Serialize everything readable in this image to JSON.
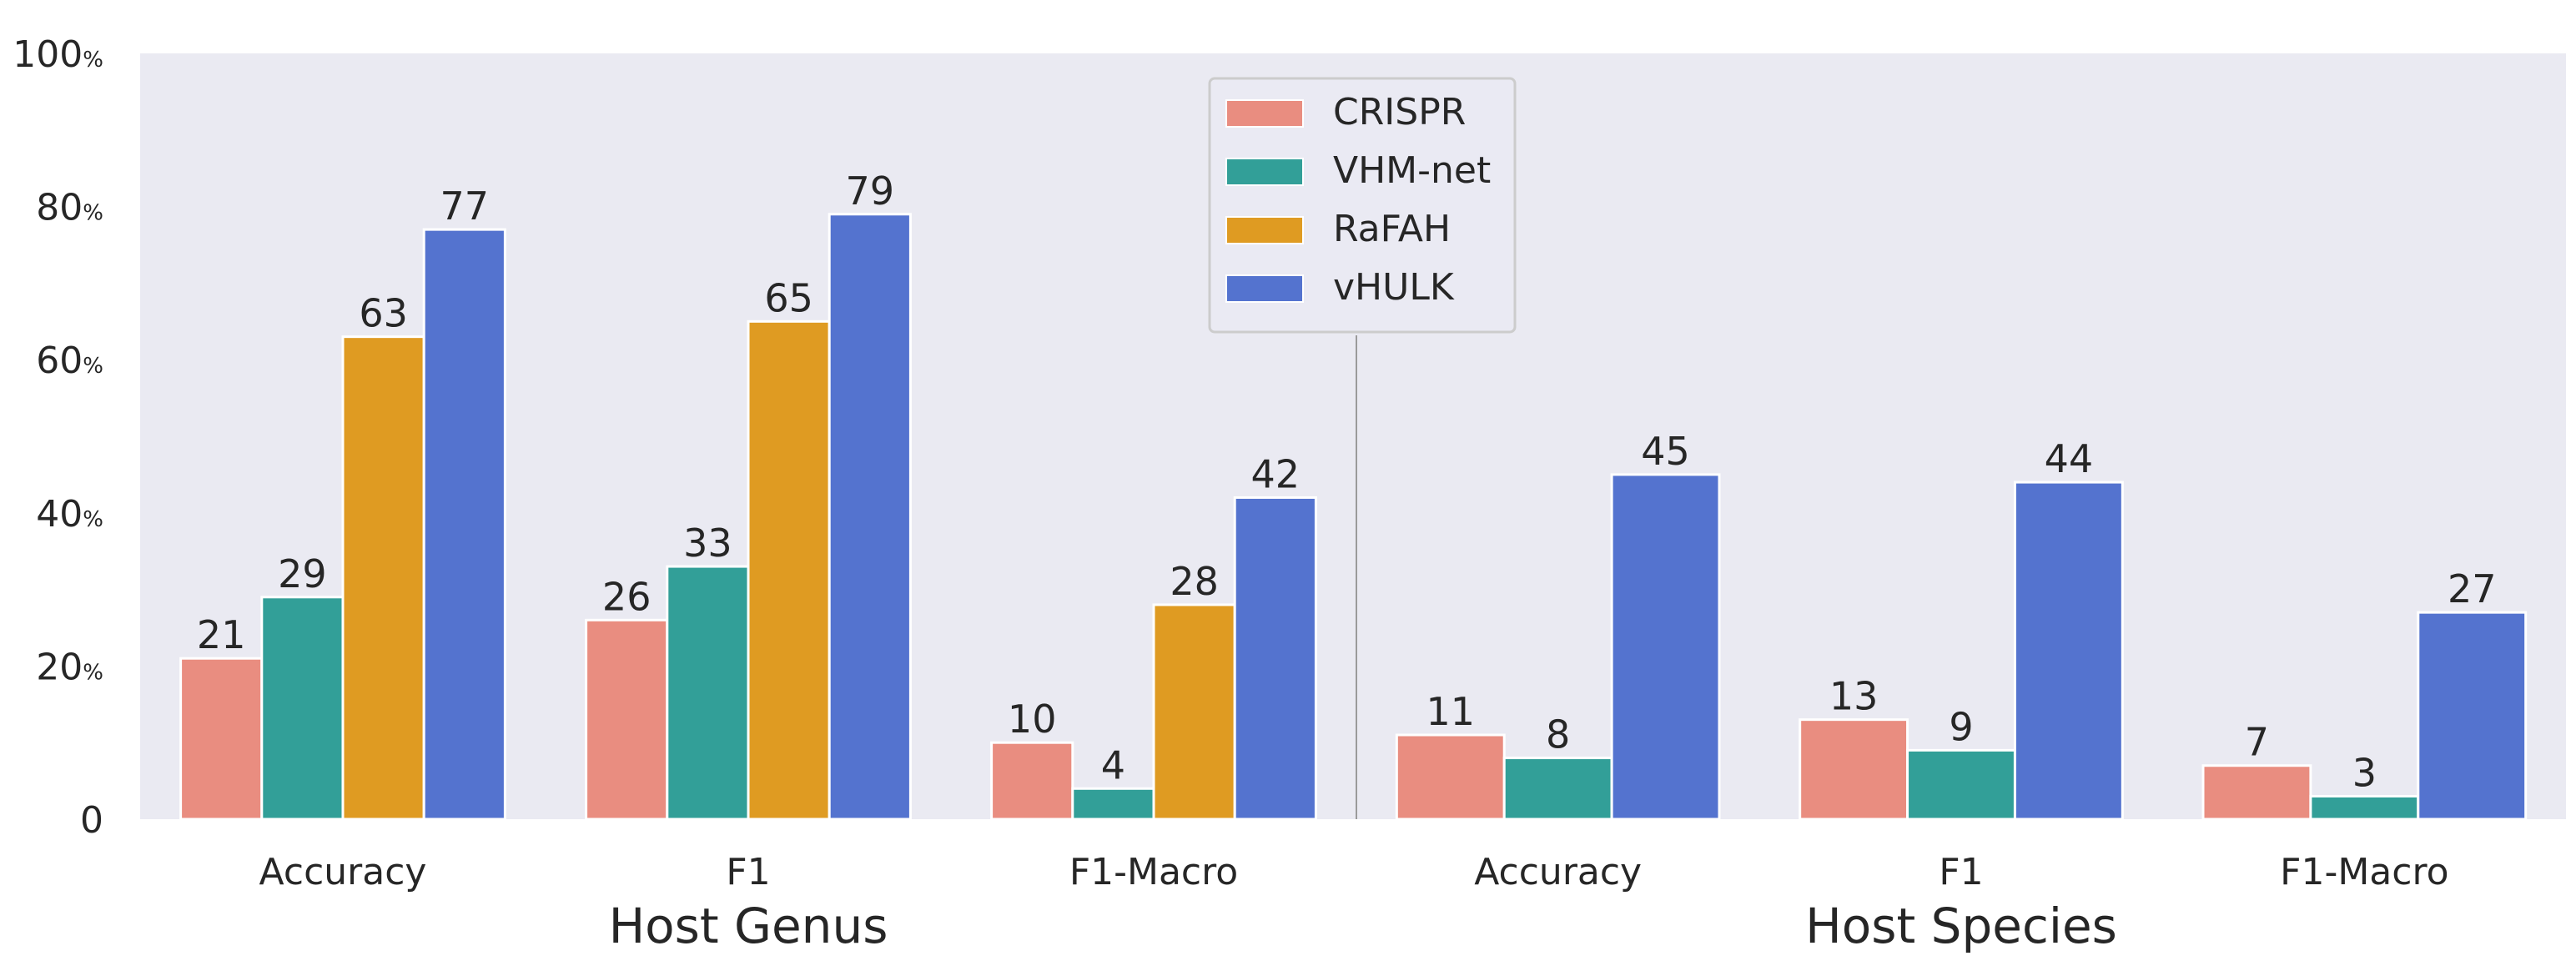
{
  "colors": {
    "plot_bg": "#EAEAF2",
    "text": "#262626",
    "divider": "#9A9A9A",
    "legend_bg": "#EAEAF2",
    "legend_border": "#CCCCCC"
  },
  "chart_data": {
    "type": "bar",
    "ylim": [
      0,
      100
    ],
    "y_ticks": [
      {
        "value": 0,
        "label": "0",
        "unit": ""
      },
      {
        "value": 20,
        "label": "20",
        "unit": "%"
      },
      {
        "value": 40,
        "label": "40",
        "unit": "%"
      },
      {
        "value": 60,
        "label": "60",
        "unit": "%"
      },
      {
        "value": 80,
        "label": "80",
        "unit": "%"
      },
      {
        "value": 100,
        "label": "100",
        "unit": "%"
      }
    ],
    "grid": false,
    "legend_position": "top-center",
    "series_meta": [
      {
        "name": "CRISPR",
        "color": "#E98D80"
      },
      {
        "name": "VHM-net",
        "color": "#329F98"
      },
      {
        "name": "RaFAH",
        "color": "#DF9B22"
      },
      {
        "name": "vHULK",
        "color": "#5473CF"
      }
    ],
    "groups": [
      {
        "name": "Host Genus",
        "categories": [
          "Accuracy",
          "F1",
          "F1-Macro"
        ],
        "series": [
          {
            "name": "CRISPR",
            "values": [
              21,
              26,
              10
            ]
          },
          {
            "name": "VHM-net",
            "values": [
              29,
              33,
              4
            ]
          },
          {
            "name": "RaFAH",
            "values": [
              63,
              65,
              28
            ]
          },
          {
            "name": "vHULK",
            "values": [
              77,
              79,
              42
            ]
          }
        ]
      },
      {
        "name": "Host Species",
        "categories": [
          "Accuracy",
          "F1",
          "F1-Macro"
        ],
        "series": [
          {
            "name": "CRISPR",
            "values": [
              11,
              13,
              7
            ]
          },
          {
            "name": "VHM-net",
            "values": [
              8,
              9,
              3
            ]
          },
          {
            "name": "vHULK",
            "values": [
              45,
              44,
              27
            ]
          }
        ]
      }
    ]
  }
}
